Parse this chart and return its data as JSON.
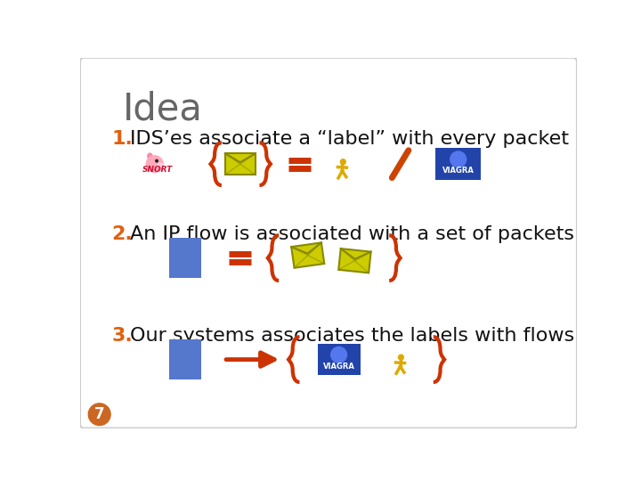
{
  "title": "Idea",
  "title_fontsize": 30,
  "title_color": "#666666",
  "background_color": "#ffffff",
  "item1_text": "IDS’es associate a “label” with every packet",
  "item2_text": "An IP flow is associated with a set of packets",
  "item3_text": "Our systems associates the labels with flows",
  "item_fontsize": 16,
  "item_color": "#111111",
  "number_color": "#e06010",
  "number_fontsize": 16,
  "brace_color": "#cc3300",
  "equals_color": "#cc3300",
  "arrow_color": "#cc3300",
  "blue_rect_color": "#5577cc",
  "envelope_color": "#cccc00",
  "envelope_edge": "#888800",
  "runner_color": "#ddaa00",
  "slash_color": "#cc4400",
  "viagra_bg": "#2244aa",
  "page_number": "7",
  "page_number_bg": "#cc6622",
  "page_number_color": "#ffffff"
}
